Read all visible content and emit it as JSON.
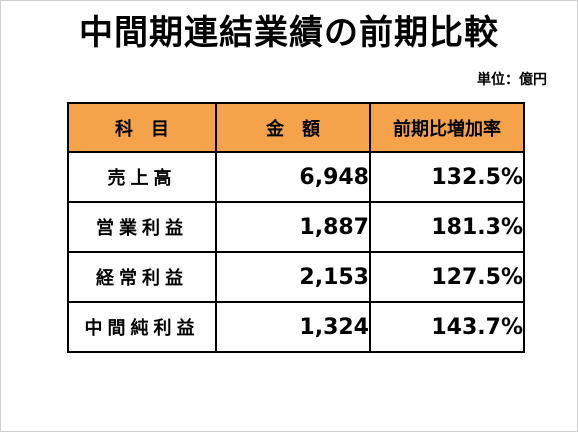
{
  "slide": {
    "title": "中間期連結業績の前期比較",
    "unit": "単位：億円"
  },
  "table": {
    "headers": [
      "科　目",
      "金　額",
      "前期比増加率"
    ],
    "rows": [
      {
        "item": "売上高",
        "amount": "6,948",
        "rate": "132.5%"
      },
      {
        "item": "営業利益",
        "amount": "1,887",
        "rate": "181.3%"
      },
      {
        "item": "経常利益",
        "amount": "2,153",
        "rate": "127.5%"
      },
      {
        "item": "中間純利益",
        "amount": "1,324",
        "rate": "143.7%"
      }
    ]
  },
  "colors": {
    "header_background": "#f5a34a",
    "border": "#000000",
    "text": "#000000"
  }
}
